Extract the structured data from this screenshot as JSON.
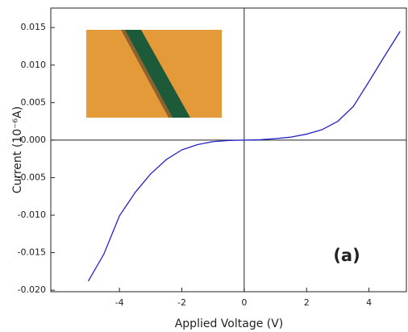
{
  "chart_data": {
    "type": "line",
    "x_label": "Applied Voltage (V)",
    "y_label": "Current (10⁻⁶A)",
    "annotation": "(a)",
    "color": "#2222cc",
    "x": [
      -5,
      -4.5,
      -4,
      -3.5,
      -3,
      -2.5,
      -2,
      -1.5,
      -1,
      -0.5,
      0,
      0.5,
      1,
      1.5,
      2,
      2.5,
      3,
      3.5,
      4,
      4.5,
      5
    ],
    "values": [
      -0.0188,
      -0.0152,
      -0.0101,
      -0.007,
      -0.0045,
      -0.0026,
      -0.0013,
      -0.0006,
      -0.0002,
      -5e-05,
      0,
      5e-05,
      0.0002,
      0.0004,
      0.0008,
      0.0014,
      0.0025,
      0.0045,
      0.0078,
      0.0112,
      0.0145
    ],
    "xlim": [
      -6.2,
      5.2
    ],
    "ylim": [
      -0.0202,
      0.0176
    ],
    "xticks": [
      -4,
      -2,
      0,
      2,
      4
    ],
    "yticks": [
      {
        "value": 0.015,
        "label": "0.015"
      },
      {
        "value": 0.01,
        "label": "0.010"
      },
      {
        "value": 0.005,
        "label": "0.005"
      },
      {
        "value": 0,
        "label": "0.000"
      },
      {
        "value": -0.005,
        "label": "-0.005"
      },
      {
        "value": -0.01,
        "label": "-0.010"
      },
      {
        "value": -0.015,
        "label": "-0.015"
      },
      {
        "value": -0.02,
        "label": "-0.020"
      }
    ]
  }
}
